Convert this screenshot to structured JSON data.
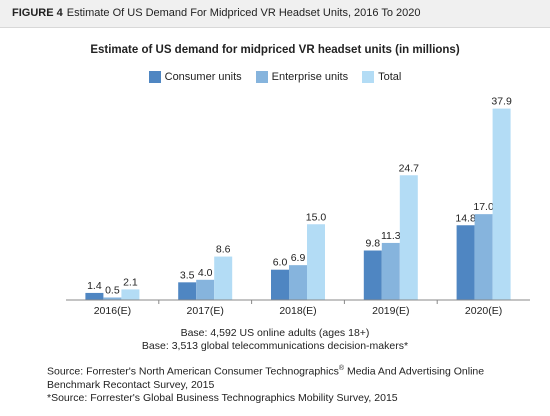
{
  "header": {
    "figure_number": "FIGURE 4",
    "title": "Estimate Of US Demand For Midpriced VR Headset Units, 2016 To 2020"
  },
  "chart_data": {
    "type": "bar",
    "title": "Estimate of US demand for midpriced VR headset units (in millions)",
    "categories": [
      "2016(E)",
      "2017(E)",
      "2018(E)",
      "2019(E)",
      "2020(E)"
    ],
    "series": [
      {
        "name": "Consumer units",
        "values": [
          1.4,
          3.5,
          6.0,
          9.8,
          14.8
        ],
        "color": "#4f86c2",
        "labels": [
          "1.4",
          "3.5",
          "6.0",
          "9.8",
          "14.8"
        ]
      },
      {
        "name": "Enterprise units",
        "values": [
          0.5,
          4.0,
          6.9,
          11.3,
          17.0
        ],
        "color": "#86b4dd",
        "labels": [
          "0.5",
          "4.0",
          "6.9",
          "11.3",
          "17.0"
        ]
      },
      {
        "name": "Total",
        "values": [
          2.1,
          8.6,
          15.0,
          24.7,
          37.9
        ],
        "color": "#b3dcf5",
        "labels": [
          "2.1",
          "8.6",
          "15.0",
          "24.7",
          "37.9"
        ]
      }
    ],
    "ylim": [
      0,
      40
    ],
    "grid": false,
    "legend": "top-center"
  },
  "notes": {
    "base1": "Base: 4,592 US online adults (ages 18+)",
    "base2": "Base: 3,513 global telecommunications decision-makers*",
    "source1_a": "Source: Forrester's North American Consumer Technographics",
    "source1_reg": "®",
    "source1_b": " Media And Advertising Online Benchmark Recontact Survey, 2015",
    "source2": "*Source: Forrester's Global Business Technographics Mobility Survey, 2015"
  }
}
